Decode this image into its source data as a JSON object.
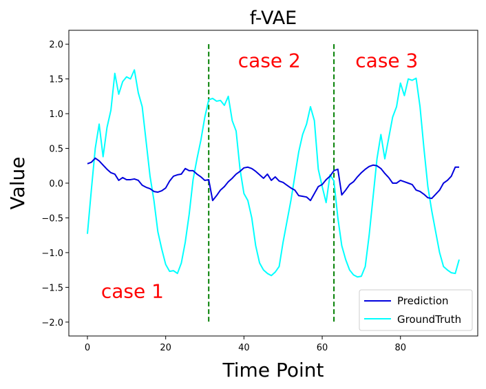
{
  "chart_data": {
    "type": "line",
    "title": "f-VAE",
    "xlabel": "Time Point",
    "ylabel": "Value",
    "xlim": [
      -4.75,
      99.75
    ],
    "ylim": [
      -2.2,
      2.2
    ],
    "xticks": [
      0,
      20,
      40,
      60,
      80
    ],
    "yticks": [
      -2.0,
      -1.5,
      -1.0,
      -0.5,
      0.0,
      0.5,
      1.0,
      1.5,
      2.0
    ],
    "ytick_labels": [
      "−2.0",
      "−1.5",
      "−1.0",
      "−0.5",
      "0.0",
      "0.5",
      "1.0",
      "1.5",
      "2.0"
    ],
    "grid": false,
    "legend_position": "lower-right",
    "series": [
      {
        "name": "Prediction",
        "color": "#0000dd",
        "x": [
          0,
          1,
          2,
          3,
          4,
          5,
          6,
          7,
          8,
          9,
          10,
          11,
          12,
          13,
          14,
          15,
          16,
          17,
          18,
          19,
          20,
          21,
          22,
          23,
          24,
          25,
          26,
          27,
          28,
          29,
          30,
          31,
          32,
          33,
          34,
          35,
          36,
          37,
          38,
          39,
          40,
          41,
          42,
          43,
          44,
          45,
          46,
          47,
          48,
          49,
          50,
          51,
          52,
          53,
          54,
          55,
          56,
          57,
          58,
          59,
          60,
          61,
          62,
          63,
          64,
          65,
          66,
          67,
          68,
          69,
          70,
          71,
          72,
          73,
          74,
          75,
          76,
          77,
          78,
          79,
          80,
          81,
          82,
          83,
          84,
          85,
          86,
          87,
          88,
          89,
          90,
          91,
          92,
          93,
          94,
          95
        ],
        "values": [
          0.28,
          0.3,
          0.36,
          0.32,
          0.26,
          0.2,
          0.15,
          0.13,
          0.04,
          0.08,
          0.05,
          0.05,
          0.06,
          0.04,
          -0.03,
          -0.06,
          -0.08,
          -0.12,
          -0.13,
          -0.11,
          -0.07,
          0.03,
          0.1,
          0.12,
          0.13,
          0.21,
          0.18,
          0.18,
          0.13,
          0.09,
          0.04,
          0.05,
          -0.25,
          -0.18,
          -0.1,
          -0.05,
          0.02,
          0.07,
          0.13,
          0.17,
          0.22,
          0.23,
          0.21,
          0.17,
          0.12,
          0.07,
          0.13,
          0.04,
          0.09,
          0.03,
          0.01,
          -0.03,
          -0.07,
          -0.1,
          -0.18,
          -0.19,
          -0.2,
          -0.25,
          -0.15,
          -0.05,
          -0.02,
          0.05,
          0.1,
          0.18,
          0.2,
          -0.17,
          -0.1,
          -0.02,
          0.02,
          0.09,
          0.15,
          0.2,
          0.24,
          0.26,
          0.25,
          0.21,
          0.14,
          0.08,
          0.0,
          0.0,
          0.04,
          0.02,
          0.0,
          -0.02,
          -0.1,
          -0.12,
          -0.16,
          -0.21,
          -0.22,
          -0.16,
          -0.1,
          0.0,
          0.04,
          0.1,
          0.23,
          0.23
        ]
      },
      {
        "name": "GroundTruth",
        "color": "#00ffff",
        "x": [
          0,
          1,
          2,
          3,
          4,
          5,
          6,
          7,
          8,
          9,
          10,
          11,
          12,
          13,
          14,
          15,
          16,
          17,
          18,
          19,
          20,
          21,
          22,
          23,
          24,
          25,
          26,
          27,
          28,
          29,
          30,
          31,
          32,
          33,
          34,
          35,
          36,
          37,
          38,
          39,
          40,
          41,
          42,
          43,
          44,
          45,
          46,
          47,
          48,
          49,
          50,
          51,
          52,
          53,
          54,
          55,
          56,
          57,
          58,
          59,
          60,
          61,
          62,
          63,
          64,
          65,
          66,
          67,
          68,
          69,
          70,
          71,
          72,
          73,
          74,
          75,
          76,
          77,
          78,
          79,
          80,
          81,
          82,
          83,
          84,
          85,
          86,
          87,
          88,
          89,
          90,
          91,
          92,
          93,
          94,
          95
        ],
        "values": [
          -0.73,
          -0.1,
          0.5,
          0.85,
          0.38,
          0.8,
          1.05,
          1.58,
          1.28,
          1.46,
          1.53,
          1.5,
          1.63,
          1.3,
          1.1,
          0.6,
          0.1,
          -0.25,
          -0.7,
          -0.95,
          -1.17,
          -1.27,
          -1.26,
          -1.3,
          -1.15,
          -0.85,
          -0.45,
          0.05,
          0.35,
          0.62,
          0.95,
          1.2,
          1.22,
          1.18,
          1.19,
          1.12,
          1.25,
          0.9,
          0.75,
          0.2,
          -0.15,
          -0.25,
          -0.5,
          -0.9,
          -1.15,
          -1.25,
          -1.3,
          -1.33,
          -1.28,
          -1.2,
          -0.85,
          -0.55,
          -0.25,
          0.1,
          0.45,
          0.7,
          0.85,
          1.1,
          0.9,
          0.2,
          -0.05,
          -0.28,
          0.12,
          0.03,
          -0.5,
          -0.9,
          -1.1,
          -1.25,
          -1.32,
          -1.35,
          -1.34,
          -1.2,
          -0.75,
          -0.2,
          0.35,
          0.7,
          0.35,
          0.65,
          0.95,
          1.1,
          1.44,
          1.26,
          1.5,
          1.48,
          1.51,
          1.1,
          0.5,
          -0.05,
          -0.4,
          -0.7,
          -1.0,
          -1.2,
          -1.25,
          -1.29,
          -1.3,
          -1.1
        ]
      }
    ],
    "vlines": [
      {
        "x": 31,
        "ymin": -2.0,
        "ymax": 2.0,
        "color": "#007f00",
        "style": "dashed"
      },
      {
        "x": 63,
        "ymin": -2.0,
        "ymax": 2.0,
        "color": "#007f00",
        "style": "dashed"
      }
    ],
    "annotations": [
      {
        "text": "case 1",
        "x": 11.5,
        "y": -1.65
      },
      {
        "text": "case 2",
        "x": 46.5,
        "y": 1.67
      },
      {
        "text": "case 3",
        "x": 76.5,
        "y": 1.67
      }
    ]
  }
}
